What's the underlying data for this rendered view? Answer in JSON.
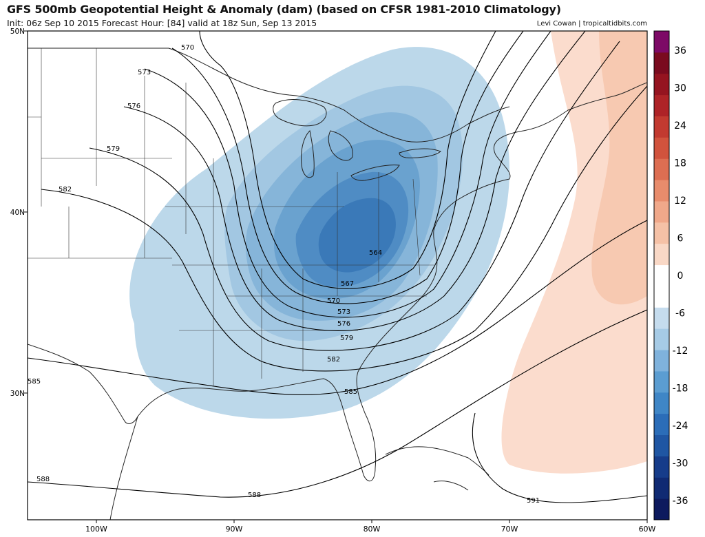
{
  "header": {
    "title": "GFS 500mb Geopotential Height & Anomaly (dam) (based on CFSR 1981-2010 Climatology)",
    "subtitle": "Init: 06z Sep 10 2015   Forecast Hour: [84]   valid at 18z Sun, Sep 13 2015",
    "credit": "Levi Cowan | tropicaltidbits.com"
  },
  "map": {
    "lon_range": [
      -105,
      -60
    ],
    "lat_range": [
      23,
      50
    ],
    "lon_ticks": [
      {
        "value": -100,
        "label": "100W"
      },
      {
        "value": -90,
        "label": "90W"
      },
      {
        "value": -80,
        "label": "80W"
      },
      {
        "value": -70,
        "label": "70W"
      },
      {
        "value": -60,
        "label": "60W"
      }
    ],
    "lat_ticks": [
      {
        "value": 50,
        "label": "50N"
      },
      {
        "value": 40,
        "label": "40N"
      },
      {
        "value": 30,
        "label": "30N"
      }
    ],
    "contour_labels": [
      "570",
      "573",
      "576",
      "579",
      "582",
      "585",
      "588",
      "564",
      "567",
      "570",
      "573",
      "576",
      "579",
      "582",
      "585",
      "588",
      "591"
    ]
  },
  "colorbar": {
    "ticks": [
      "36",
      "30",
      "24",
      "18",
      "12",
      "6",
      "0",
      "-6",
      "-12",
      "-18",
      "-24",
      "-30",
      "-36"
    ],
    "colors": [
      "#0d1a5e",
      "#102a73",
      "#163c8a",
      "#1f56a3",
      "#2b6db8",
      "#3f86c6",
      "#5b9dd1",
      "#7fb2dc",
      "#a6cbe6",
      "#c5dcee",
      "#ffffff",
      "#ffffff",
      "#f9d8c6",
      "#f5c1a6",
      "#f0a88a",
      "#e88c6c",
      "#dd6e52",
      "#d1533d",
      "#c23a30",
      "#ae2327",
      "#951420",
      "#7a0b1f",
      "#7d0a66"
    ],
    "colors_order": "bottom-to-top"
  }
}
